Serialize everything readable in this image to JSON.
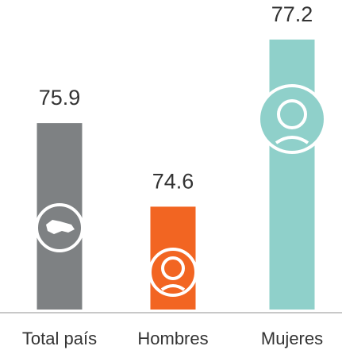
{
  "chart_data": {
    "type": "bar",
    "categories": [
      "Total país",
      "Hombres",
      "Mujeres"
    ],
    "values": [
      75.9,
      74.6,
      77.2
    ],
    "colors": [
      "#7e8183",
      "#f26522",
      "#8fd0ca"
    ],
    "ylim": [
      73,
      78
    ]
  }
}
